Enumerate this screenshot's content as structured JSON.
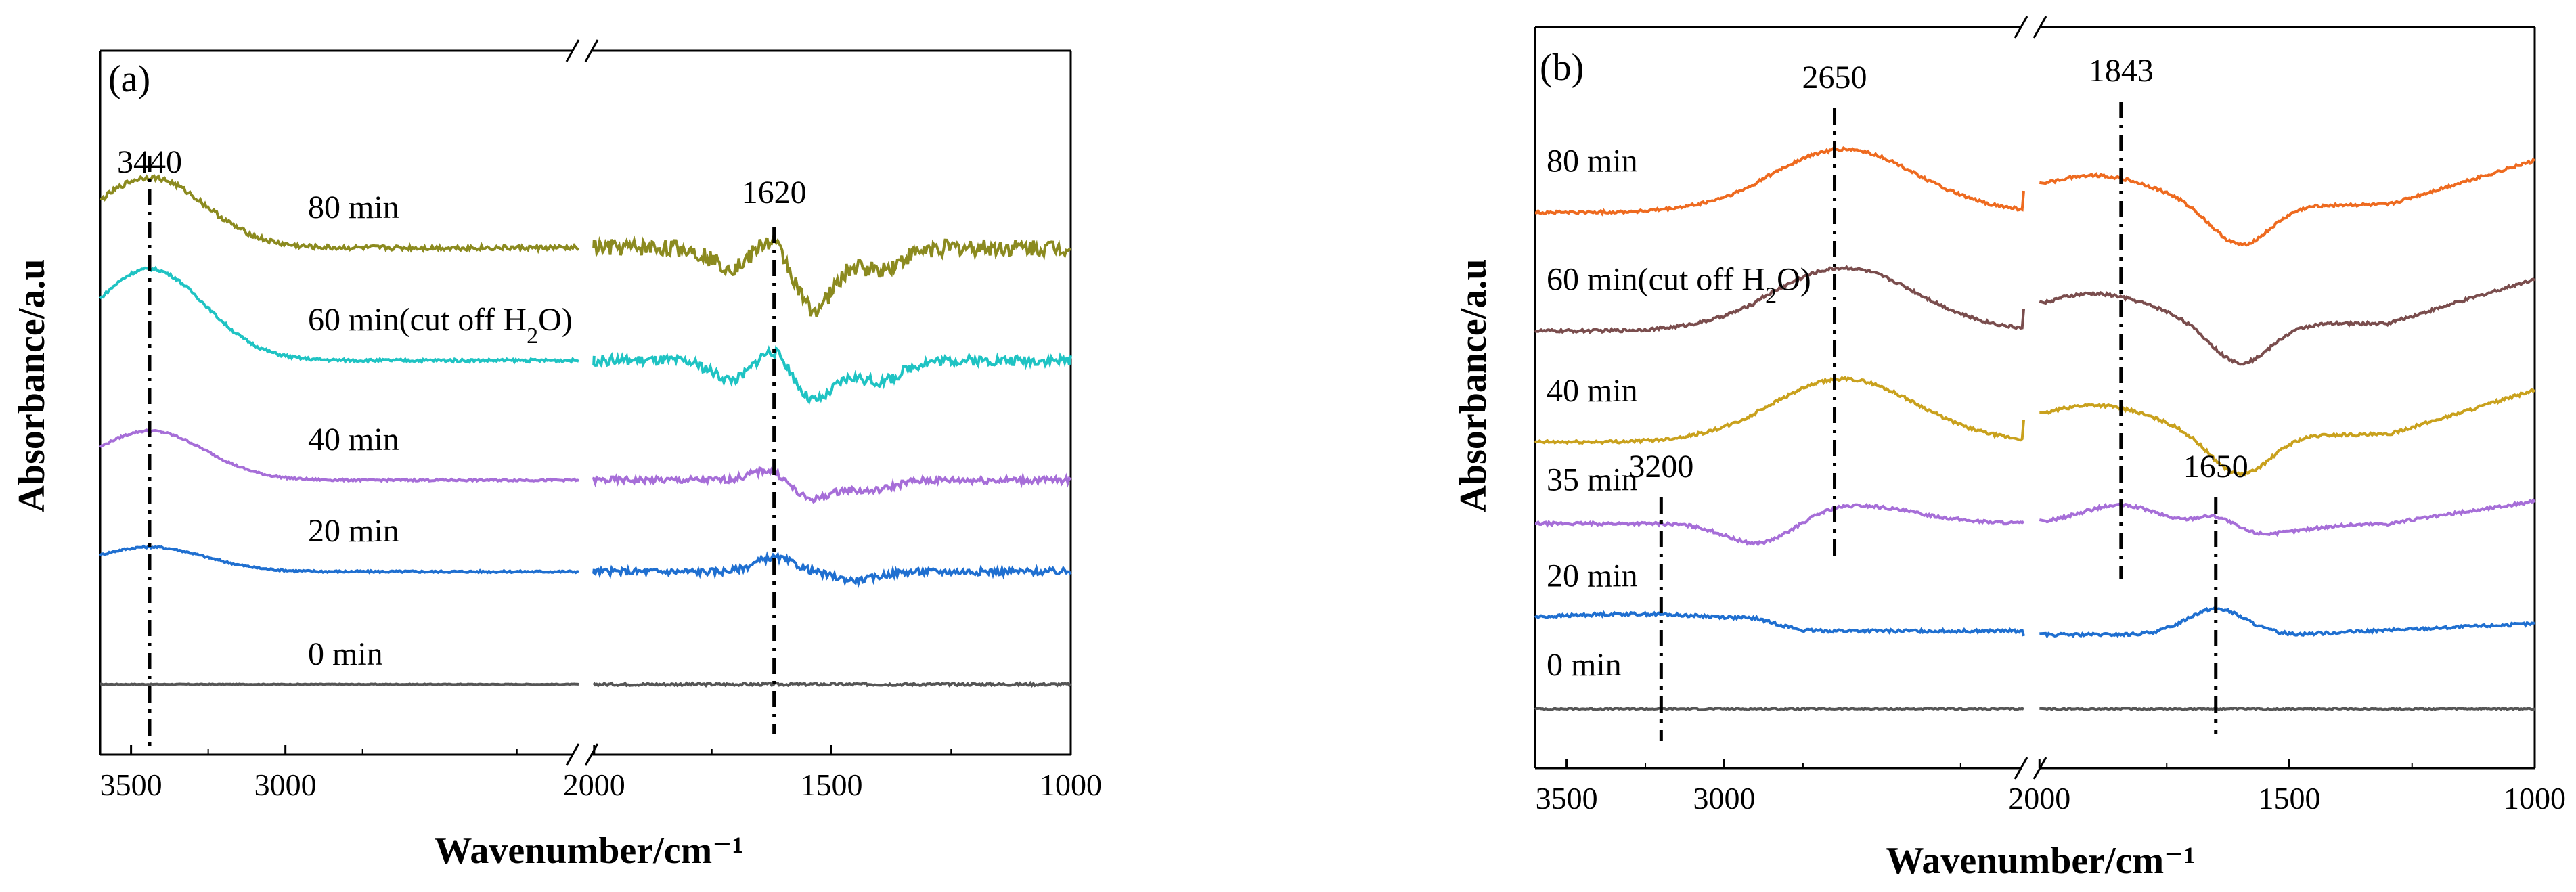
{
  "chart_data": [
    {
      "type": "line",
      "panel": "(a)",
      "xlabel": "Wavenumber/cm⁻¹",
      "ylabel": "Absorbance/a.u",
      "x_segments": [
        [
          3600,
          2050
        ],
        [
          2000,
          1000
        ]
      ],
      "x_ticks": [
        3500,
        3000,
        2000,
        1500,
        1000
      ],
      "x_tick_labels": [
        "3500",
        "3000",
        "2000",
        "1500",
        "1000"
      ],
      "ylim": [
        0,
        10
      ],
      "series": [
        {
          "name": "0 min",
          "label": "0 min",
          "color": "#555555",
          "offset": 1.0,
          "hump_low": 0.0,
          "hump_high": 0.0,
          "dips": [],
          "noise": 0.03
        },
        {
          "name": "20 min",
          "label": "20 min",
          "color": "#1f6fd0",
          "offset": 2.6,
          "hump_low": 0.35,
          "hump_high": 0.2,
          "dips": [
            [
              1450,
              -0.12
            ]
          ],
          "noise": 0.08
        },
        {
          "name": "40 min",
          "label": "40 min",
          "color": "#a66ed8",
          "offset": 3.9,
          "hump_low": 0.7,
          "hump_high": 0.2,
          "dips": [
            [
              1550,
              -0.3
            ],
            [
              1420,
              -0.15
            ]
          ],
          "noise": 0.08
        },
        {
          "name": "60 min(cut off H2O)",
          "label": "60 min(cut off H",
          "label_sub": "2",
          "label_end": "O)",
          "color": "#1fc3c3",
          "offset": 5.6,
          "hump_low": 1.3,
          "hump_high": 0.3,
          "dips": [
            [
              1700,
              -0.3
            ],
            [
              1540,
              -0.6
            ],
            [
              1400,
              -0.3
            ]
          ],
          "noise": 0.12
        },
        {
          "name": "80 min",
          "label": "80 min",
          "color": "#8b8a1f",
          "offset": 7.2,
          "hump_low": 1.0,
          "hump_high": 0.3,
          "dips": [
            [
              1700,
              -0.3
            ],
            [
              1540,
              -0.9
            ],
            [
              1400,
              -0.3
            ]
          ],
          "noise": 0.2
        }
      ],
      "annotations": [
        {
          "text": "3440",
          "x": 3440
        },
        {
          "text": "1620",
          "x": 1620
        }
      ]
    },
    {
      "type": "line",
      "panel": "(b)",
      "xlabel": "Wavenumber/cm⁻¹",
      "ylabel": "Absorbance/a.u",
      "x_segments": [
        [
          3600,
          2050
        ],
        [
          2000,
          1000
        ]
      ],
      "x_ticks": [
        3500,
        3000,
        2000,
        1500,
        1000
      ],
      "x_tick_labels": [
        "3500",
        "3000",
        "2000",
        "1500",
        "1000"
      ],
      "ylim": [
        0,
        10
      ],
      "series": [
        {
          "name": "0 min",
          "label": "0 min",
          "color": "#555555",
          "offset": 0.8,
          "shape": "flat"
        },
        {
          "name": "20 min",
          "label": "20 min",
          "color": "#1f6fd0",
          "offset": 2.0,
          "shape": "b20"
        },
        {
          "name": "35 min",
          "label": "35 min",
          "color": "#a66ed8",
          "offset": 3.3,
          "shape": "b35"
        },
        {
          "name": "40 min",
          "label": "40 min",
          "color": "#c9a11d",
          "offset": 4.5,
          "shape": "b40"
        },
        {
          "name": "60 min(cut off H2O)",
          "label": "60 min(cut off H",
          "label_sub": "2",
          "label_end": "O)",
          "color": "#7a4d4d",
          "offset": 6.0,
          "shape": "b40"
        },
        {
          "name": "80 min",
          "label": "80 min",
          "color": "#ee6a1f",
          "offset": 7.6,
          "shape": "b40"
        }
      ],
      "annotations": [
        {
          "text": "3200",
          "x": 3200
        },
        {
          "text": "2650",
          "x": 2650
        },
        {
          "text": "1843",
          "x": 1843
        },
        {
          "text": "1650",
          "x": 1650
        }
      ]
    }
  ]
}
